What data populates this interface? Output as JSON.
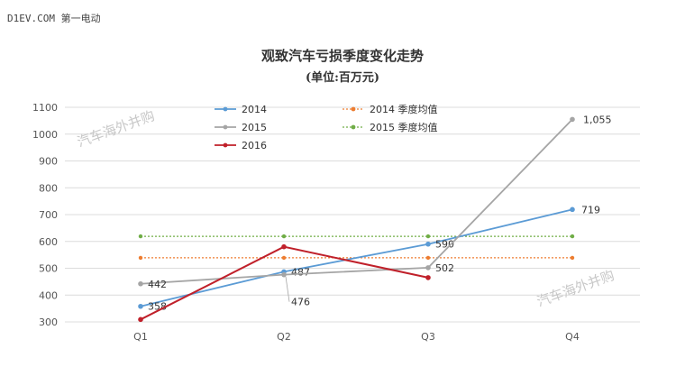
{
  "source_label": "D1EV.COM 第一电动",
  "chart_data": {
    "type": "line",
    "title": "观致汽车亏损季度变化走势",
    "subtitle": "(单位:百万元)",
    "categories": [
      "Q1",
      "Q2",
      "Q3",
      "Q4"
    ],
    "yticks": [
      300,
      400,
      500,
      600,
      700,
      800,
      900,
      1000,
      1100
    ],
    "ylim": [
      300,
      1100
    ],
    "grid": true,
    "legend_position": "top",
    "series": [
      {
        "name": "2014",
        "values": [
          358,
          487,
          590,
          719
        ],
        "color": "#5b9bd5",
        "style": "solid",
        "labels": [
          "358",
          "487",
          "590",
          "719"
        ]
      },
      {
        "name": "2015",
        "values": [
          442,
          476,
          502,
          1055
        ],
        "color": "#a5a5a5",
        "style": "solid",
        "labels": [
          "442",
          "476",
          "502",
          "1,055"
        ]
      },
      {
        "name": "2016",
        "values": [
          309,
          580,
          465,
          null
        ],
        "color": "#c0202a",
        "style": "solid",
        "labels": []
      },
      {
        "name": "2014 季度均值",
        "values": [
          539,
          539,
          539,
          539
        ],
        "color": "#ed7d31",
        "style": "dotted",
        "labels": []
      },
      {
        "name": "2015 季度均值",
        "values": [
          619,
          619,
          619,
          619
        ],
        "color": "#70ad47",
        "style": "dotted",
        "labels": []
      }
    ]
  },
  "watermarks": [
    "汽车海外并购",
    "汽车海外并购"
  ]
}
